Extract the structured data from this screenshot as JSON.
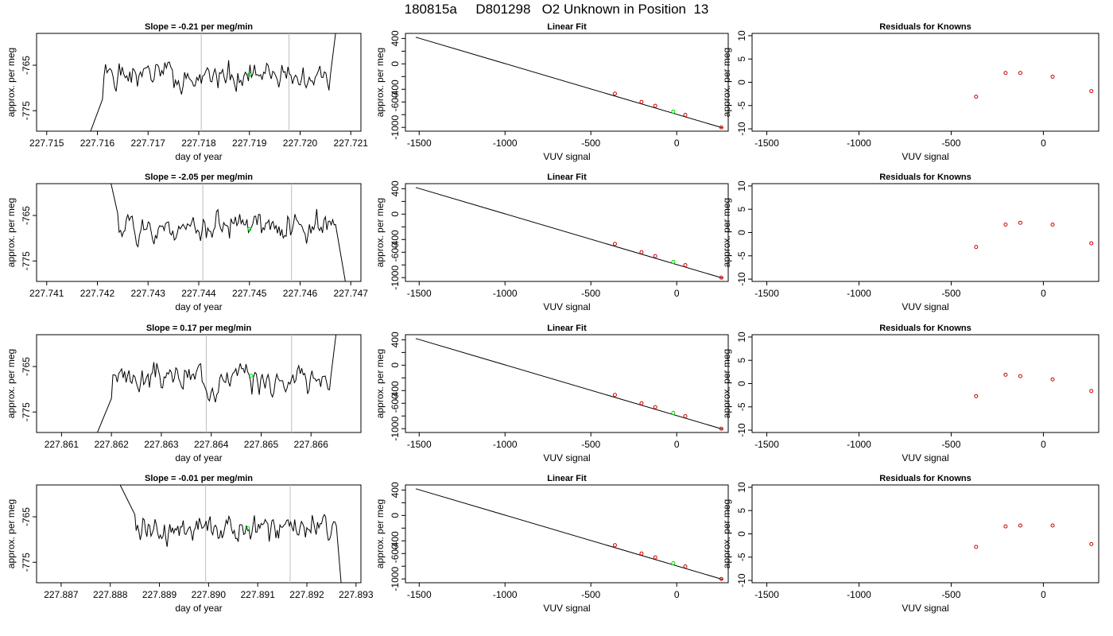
{
  "title": "180815a     D801298   O2 Unknown in Position  13",
  "colors": {
    "trace": "#000000",
    "vline": "#bebebe",
    "unknown": "#00dd00",
    "known": "#cc0000"
  },
  "chart_data": [
    {
      "type": "line",
      "title": "Slope =  -0.21  per meg/min",
      "xlabel": "day of year",
      "ylabel": "approx. per meg",
      "xlim": [
        227.7148,
        227.7212
      ],
      "ylim": [
        -779.5,
        -758
      ],
      "xticks": [
        "227.715",
        "227.716",
        "227.717",
        "227.718",
        "227.719",
        "227.720",
        "227.721"
      ],
      "yticks": [
        "-775",
        "-765"
      ],
      "ytick_values": [
        -775,
        -765
      ],
      "vlines": [
        227.71805,
        227.71978
      ],
      "unknown_point": [
        227.719,
        -767
      ],
      "trace_start": 227.7158,
      "trace_end": 227.7206,
      "rise_start": [
        227.71585,
        -780
      ],
      "ramp_to": [
        227.7161,
        -772.5
      ],
      "fall_end": [
        227.7207,
        -758
      ],
      "seed": 1
    },
    {
      "type": "scatter",
      "title": "Linear Fit",
      "xlabel": "VUV signal",
      "ylabel": "approx. per meg",
      "xlim": [
        -1580,
        300
      ],
      "ylim": [
        -1060,
        480
      ],
      "xticks": [
        "-1500",
        "-1000",
        "-500",
        "0"
      ],
      "xtick_values": [
        -1500,
        -1000,
        -500,
        0
      ],
      "yticks": [
        "-1000",
        "-800",
        "-600",
        "-400",
        "-200",
        "0",
        "200",
        "400"
      ],
      "ytick_values": [
        -1000,
        -800,
        -600,
        -400,
        -200,
        0,
        200,
        400
      ],
      "ytick_labels": [
        "-1000",
        "",
        "-600",
        "-400",
        "",
        "0",
        "",
        "400"
      ],
      "fit_line": [
        [
          -1520,
          420
        ],
        [
          270,
          -1010
        ]
      ],
      "known_points": [
        [
          -360,
          -468
        ],
        [
          -205,
          -600
        ],
        [
          -125,
          -661
        ],
        [
          50,
          -803
        ],
        [
          260,
          -1001
        ]
      ],
      "unknown_point": [
        -20,
        -751
      ]
    },
    {
      "type": "scatter",
      "title": "Residuals for Knowns",
      "xlabel": "VUV signal",
      "ylabel": "approx. per meg",
      "xlim": [
        -1580,
        300
      ],
      "ylim": [
        -10.5,
        10.5
      ],
      "xticks": [
        "-1500",
        "-1000",
        "-500",
        "0"
      ],
      "xtick_values": [
        -1500,
        -1000,
        -500,
        0
      ],
      "yticks": [
        "-10",
        "-5",
        "0",
        "5",
        "10"
      ],
      "ytick_values": [
        -10,
        -5,
        0,
        5,
        10
      ],
      "points": [
        [
          -365,
          -3.1
        ],
        [
          -205,
          2.0
        ],
        [
          -125,
          2.0
        ],
        [
          50,
          1.2
        ],
        [
          260,
          -1.9
        ]
      ]
    },
    {
      "type": "line",
      "title": "Slope =  -2.05  per meg/min",
      "xlabel": "day of year",
      "ylabel": "approx. per meg",
      "xlim": [
        227.7408,
        227.7472
      ],
      "ylim": [
        -779.5,
        -758
      ],
      "xticks": [
        "227.741",
        "227.742",
        "227.743",
        "227.744",
        "227.745",
        "227.746",
        "227.747"
      ],
      "yticks": [
        "-775",
        "-765"
      ],
      "ytick_values": [
        -775,
        -765
      ],
      "vlines": [
        227.74408,
        227.74583
      ],
      "unknown_point": [
        227.745,
        -768
      ],
      "trace_start": 227.74227,
      "trace_end": 227.7467,
      "rise_start": [
        227.74227,
        -758
      ],
      "ramp_to": [
        227.7424,
        -764.5
      ],
      "fall_end": [
        227.7469,
        -780
      ],
      "seed": 2
    },
    {
      "type": "scatter",
      "title": "Linear Fit",
      "xlabel": "VUV signal",
      "ylabel": "approx. per meg",
      "xlim": [
        -1580,
        300
      ],
      "ylim": [
        -1060,
        480
      ],
      "xticks": [
        "-1500",
        "-1000",
        "-500",
        "0"
      ],
      "xtick_values": [
        -1500,
        -1000,
        -500,
        0
      ],
      "yticks": [
        "-1000",
        "-800",
        "-600",
        "-400",
        "-200",
        "0",
        "200",
        "400"
      ],
      "ytick_values": [
        -1000,
        -800,
        -600,
        -400,
        -200,
        0,
        200,
        400
      ],
      "ytick_labels": [
        "-1000",
        "",
        "-600",
        "-400",
        "",
        "0",
        "",
        "400"
      ],
      "fit_line": [
        [
          -1520,
          420
        ],
        [
          270,
          -1010
        ]
      ],
      "known_points": [
        [
          -360,
          -468
        ],
        [
          -205,
          -600
        ],
        [
          -125,
          -661
        ],
        [
          50,
          -803
        ],
        [
          260,
          -1001
        ]
      ],
      "unknown_point": [
        -20,
        -751
      ]
    },
    {
      "type": "scatter",
      "title": "Residuals for Knowns",
      "xlabel": "VUV signal",
      "ylabel": "approx. per meg",
      "xlim": [
        -1580,
        300
      ],
      "ylim": [
        -10.5,
        10.5
      ],
      "xticks": [
        "-1500",
        "-1000",
        "-500",
        "0"
      ],
      "xtick_values": [
        -1500,
        -1000,
        -500,
        0
      ],
      "yticks": [
        "-10",
        "-5",
        "0",
        "5",
        "10"
      ],
      "ytick_values": [
        -10,
        -5,
        0,
        5,
        10
      ],
      "points": [
        [
          -365,
          -3.1
        ],
        [
          -205,
          1.7
        ],
        [
          -125,
          2.1
        ],
        [
          50,
          1.7
        ],
        [
          260,
          -2.3
        ]
      ]
    },
    {
      "type": "line",
      "title": "Slope =  0.17  per meg/min",
      "xlabel": "day of year",
      "ylabel": "approx. per meg",
      "xlim": [
        227.8605,
        227.867
      ],
      "ylim": [
        -779.5,
        -758
      ],
      "xticks": [
        "227.861",
        "227.862",
        "227.863",
        "227.864",
        "227.865",
        "227.866"
      ],
      "yticks": [
        "-775",
        "-765"
      ],
      "ytick_values": [
        -775,
        -765
      ],
      "vlines": [
        227.8639,
        227.86561
      ],
      "unknown_point": [
        227.8648,
        -767
      ],
      "trace_start": 227.8617,
      "trace_end": 227.8664,
      "rise_start": [
        227.8617,
        -780
      ],
      "ramp_to": [
        227.862,
        -772
      ],
      "fall_end": [
        227.8665,
        -758
      ],
      "seed": 3
    },
    {
      "type": "scatter",
      "title": "Linear Fit",
      "xlabel": "VUV signal",
      "ylabel": "approx. per meg",
      "xlim": [
        -1580,
        300
      ],
      "ylim": [
        -1060,
        480
      ],
      "xticks": [
        "-1500",
        "-1000",
        "-500",
        "0"
      ],
      "xtick_values": [
        -1500,
        -1000,
        -500,
        0
      ],
      "yticks": [
        "-1000",
        "-800",
        "-600",
        "-400",
        "-200",
        "0",
        "200",
        "400"
      ],
      "ytick_values": [
        -1000,
        -800,
        -600,
        -400,
        -200,
        0,
        200,
        400
      ],
      "ytick_labels": [
        "-1000",
        "",
        "-600",
        "-400",
        "",
        "0",
        "",
        "400"
      ],
      "fit_line": [
        [
          -1520,
          420
        ],
        [
          270,
          -1010
        ]
      ],
      "known_points": [
        [
          -360,
          -468
        ],
        [
          -205,
          -600
        ],
        [
          -125,
          -661
        ],
        [
          50,
          -803
        ],
        [
          260,
          -1001
        ]
      ],
      "unknown_point": [
        -20,
        -751
      ]
    },
    {
      "type": "scatter",
      "title": "Residuals for Knowns",
      "xlabel": "VUV signal",
      "ylabel": "approx. per meg",
      "xlim": [
        -1580,
        300
      ],
      "ylim": [
        -10.5,
        10.5
      ],
      "xticks": [
        "-1500",
        "-1000",
        "-500",
        "0"
      ],
      "xtick_values": [
        -1500,
        -1000,
        -500,
        0
      ],
      "yticks": [
        "-10",
        "-5",
        "0",
        "5",
        "10"
      ],
      "ytick_values": [
        -10,
        -5,
        0,
        5,
        10
      ],
      "points": [
        [
          -365,
          -2.7
        ],
        [
          -205,
          1.9
        ],
        [
          -125,
          1.6
        ],
        [
          50,
          0.9
        ],
        [
          260,
          -1.6
        ]
      ]
    },
    {
      "type": "line",
      "title": "Slope =  -0.01  per meg/min",
      "xlabel": "day of year",
      "ylabel": "approx. per meg",
      "xlim": [
        227.8865,
        227.8931
      ],
      "ylim": [
        -779.5,
        -758
      ],
      "xticks": [
        "227.887",
        "227.888",
        "227.889",
        "227.890",
        "227.891",
        "227.892",
        "227.893"
      ],
      "yticks": [
        "-775",
        "-765"
      ],
      "ytick_values": [
        -775,
        -765
      ],
      "vlines": [
        227.88994,
        227.89166
      ],
      "unknown_point": [
        227.8908,
        -767.5
      ],
      "trace_start": 227.8882,
      "trace_end": 227.8926,
      "rise_start": [
        227.8882,
        -758
      ],
      "ramp_to": [
        227.8885,
        -764.5
      ],
      "fall_end": [
        227.8927,
        -780
      ],
      "seed": 4
    },
    {
      "type": "scatter",
      "title": "Linear Fit",
      "xlabel": "VUV signal",
      "ylabel": "approx. per meg",
      "xlim": [
        -1580,
        300
      ],
      "ylim": [
        -1060,
        480
      ],
      "xticks": [
        "-1500",
        "-1000",
        "-500",
        "0"
      ],
      "xtick_values": [
        -1500,
        -1000,
        -500,
        0
      ],
      "yticks": [
        "-1000",
        "-800",
        "-600",
        "-400",
        "-200",
        "0",
        "200",
        "400"
      ],
      "ytick_values": [
        -1000,
        -800,
        -600,
        -400,
        -200,
        0,
        200,
        400
      ],
      "ytick_labels": [
        "-1000",
        "",
        "-600",
        "-400",
        "",
        "0",
        "",
        "400"
      ],
      "fit_line": [
        [
          -1520,
          420
        ],
        [
          270,
          -1010
        ]
      ],
      "known_points": [
        [
          -360,
          -468
        ],
        [
          -205,
          -600
        ],
        [
          -125,
          -661
        ],
        [
          50,
          -803
        ],
        [
          260,
          -1001
        ]
      ],
      "unknown_point": [
        -20,
        -751
      ]
    },
    {
      "type": "scatter",
      "title": "Residuals for Knowns",
      "xlabel": "VUV signal",
      "ylabel": "approx. per meg",
      "xlim": [
        -1580,
        300
      ],
      "ylim": [
        -10.5,
        10.5
      ],
      "xticks": [
        "-1500",
        "-1000",
        "-500",
        "0"
      ],
      "xtick_values": [
        -1500,
        -1000,
        -500,
        0
      ],
      "yticks": [
        "-10",
        "-5",
        "0",
        "5",
        "10"
      ],
      "ytick_values": [
        -10,
        -5,
        0,
        5,
        10
      ],
      "points": [
        [
          -365,
          -2.8
        ],
        [
          -205,
          1.6
        ],
        [
          -125,
          1.8
        ],
        [
          50,
          1.8
        ],
        [
          260,
          -2.2
        ]
      ]
    }
  ]
}
